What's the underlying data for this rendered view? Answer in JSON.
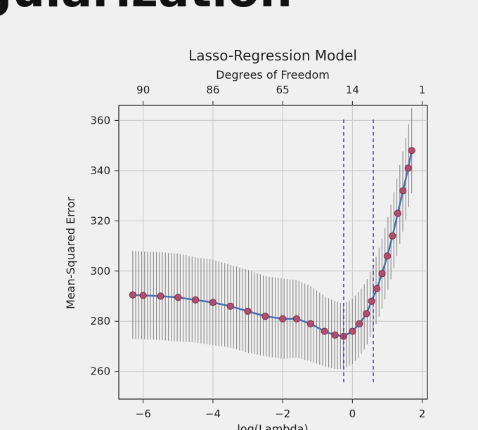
{
  "slide": {
    "title_fragment": "gularization"
  },
  "chart_data": {
    "type": "line",
    "title": "Lasso-Regression Model",
    "top_axis_label": "Degrees of Freedom",
    "top_ticks": [
      "90",
      "86",
      "65",
      "14",
      "1"
    ],
    "xlabel": "log(Lambda)",
    "ylabel": "Mean-Squared Error",
    "x_ticks": [
      -6,
      -4,
      -2,
      0,
      2
    ],
    "x_tick_labels": [
      "−6",
      "−4",
      "−2",
      "0",
      "2"
    ],
    "y_ticks": [
      260,
      280,
      300,
      320,
      340,
      360
    ],
    "xlim": [
      -6.7,
      2.15
    ],
    "ylim": [
      249,
      366
    ],
    "grid": true,
    "vlines": [
      -0.25,
      0.6
    ],
    "colors": {
      "points": "#b0506e",
      "points_edge": "#7a2b4a",
      "line": "#4a6fb0",
      "errorbars": "#8a8a8a",
      "vlines": "#3a3ab8"
    },
    "series": [
      {
        "x": [
          -6.3,
          -6.0,
          -5.5,
          -5.0,
          -4.5,
          -4.0,
          -3.5,
          -3.0,
          -2.5,
          -2.0,
          -1.6,
          -1.2,
          -0.8,
          -0.5,
          -0.25,
          0.0,
          0.2,
          0.4,
          0.55,
          0.7,
          0.85,
          1.0,
          1.15,
          1.3,
          1.45,
          1.6,
          1.7
        ],
        "y": [
          290.5,
          290.3,
          290.0,
          289.5,
          288.5,
          287.5,
          286.0,
          284.0,
          282.0,
          281.0,
          281.0,
          279.0,
          276.0,
          274.5,
          274.0,
          276.0,
          279.0,
          283.0,
          288.0,
          293.0,
          299.0,
          306.0,
          314.0,
          323.0,
          332.0,
          341.0,
          348.0
        ],
        "err": [
          17.5,
          17.5,
          17.5,
          17.5,
          17.0,
          17.0,
          16.5,
          16.5,
          16.0,
          16.0,
          15.5,
          15.0,
          14.0,
          13.5,
          13.0,
          13.0,
          13.0,
          13.0,
          13.0,
          13.5,
          14.0,
          14.5,
          15.0,
          15.5,
          16.0,
          16.5,
          17.0
        ]
      }
    ]
  }
}
